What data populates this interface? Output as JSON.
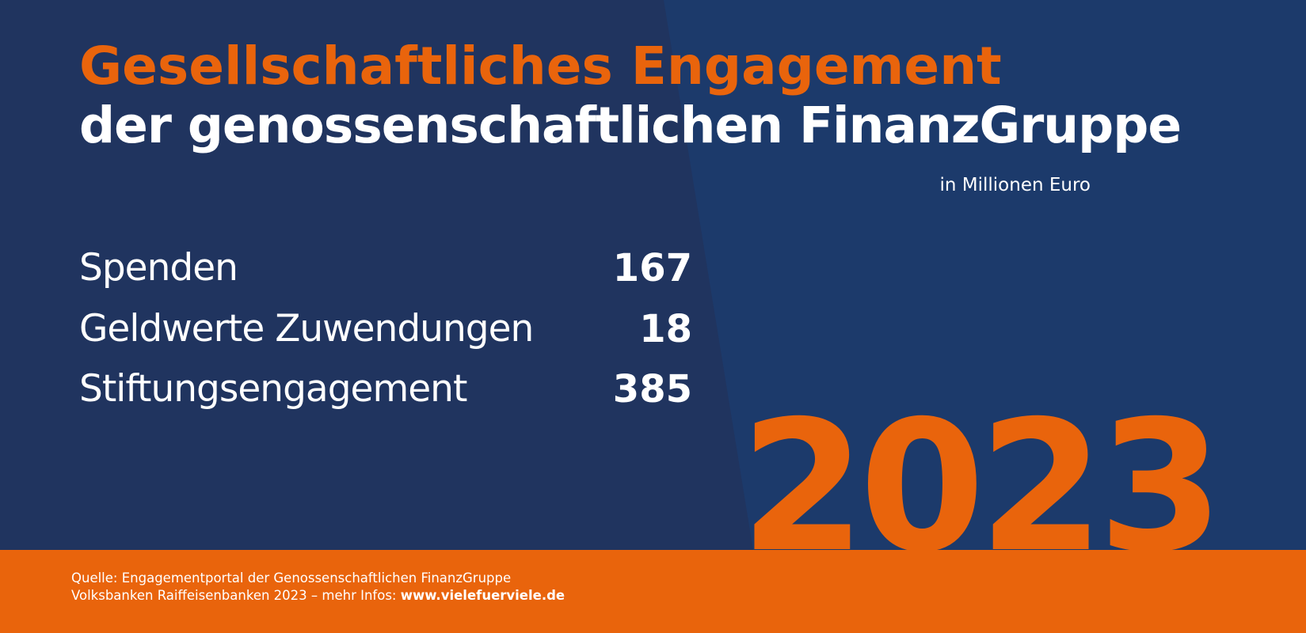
{
  "colors": {
    "background_left": "#20345f",
    "background_right": "#1c3a6b",
    "accent_orange": "#e9640c",
    "text_white": "#ffffff"
  },
  "header": {
    "title_line1": "Gesellschaftliches Engagement",
    "title_line2": "der genossenschaftlichen FinanzGruppe",
    "unit_label": "in Millionen Euro"
  },
  "chart_data": {
    "type": "table",
    "title": "Gesellschaftliches Engagement der genossenschaftlichen FinanzGruppe",
    "unit": "in Millionen Euro",
    "year": "2023",
    "categories": [
      "Spenden",
      "Geldwerte Zuwendungen",
      "Stiftungsengagement"
    ],
    "values": [
      167,
      18,
      385
    ]
  },
  "year_label": "2023",
  "footer": {
    "source_line1": "Quelle: Engagementportal der Genossenschaftlichen FinanzGruppe",
    "source_line2_prefix": "Volksbanken Raiffeisenbanken 2023 – mehr Infos: ",
    "source_link": "www.vielefuerviele.de"
  }
}
